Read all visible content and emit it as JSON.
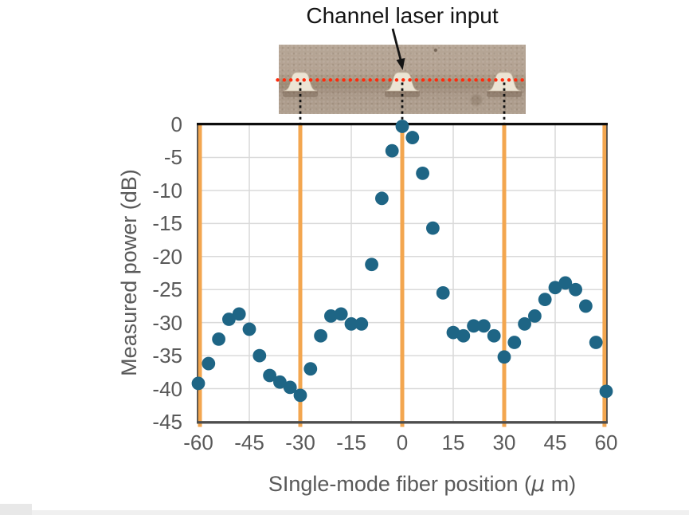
{
  "annotation": {
    "title": "Channel laser input"
  },
  "photo": {
    "bump_positions_um": [
      -30,
      0,
      30
    ]
  },
  "xlabel_parts": {
    "prefix": "SIngle-mode fiber position (",
    "mu": "μ",
    "suffix": " m)"
  },
  "chart_data": {
    "type": "scatter",
    "title": "",
    "xlabel": "SIngle-mode fiber position (μ m)",
    "ylabel": "Measured power (dB)",
    "xlim": [
      -60,
      60
    ],
    "ylim": [
      -45,
      0
    ],
    "grid": true,
    "xticks": [
      -60,
      -45,
      -30,
      -15,
      0,
      15,
      30,
      45,
      60
    ],
    "yticks": [
      0,
      -5,
      -10,
      -15,
      -20,
      -25,
      -30,
      -35,
      -40,
      -45
    ],
    "highlight_lines_x": [
      -60,
      -30,
      0,
      30,
      60
    ],
    "x": [
      -60,
      -57,
      -54,
      -51,
      -48,
      -45,
      -42,
      -39,
      -36,
      -33,
      -30,
      -27,
      -24,
      -21,
      -18,
      -15,
      -12,
      -9,
      -6,
      -3,
      0,
      3,
      6,
      9,
      12,
      15,
      18,
      21,
      24,
      27,
      30,
      33,
      36,
      39,
      42,
      45,
      48,
      51,
      54,
      57,
      60
    ],
    "y": [
      -39.2,
      -36.2,
      -32.5,
      -29.5,
      -28.7,
      -31,
      -35,
      -38,
      -39,
      -39.8,
      -41,
      -37,
      -32,
      -29,
      -28.7,
      -30.2,
      -30.2,
      -21.2,
      -11.2,
      -4,
      -0.3,
      -2,
      -7.4,
      -15.7,
      -25.5,
      -31.5,
      -32,
      -30.5,
      -30.5,
      -32,
      -35.2,
      -33,
      -30.2,
      -29,
      -26.5,
      -24.7,
      -24,
      -25,
      -27.5,
      -33,
      -40.4
    ],
    "colors": {
      "point": "#1E6585",
      "channel_line": "#F3A64F",
      "grid": "#d9d9d9",
      "tick_text": "#595959",
      "red_dotted_line": "#FF2B0D",
      "dash_line": "#111111",
      "top_axis": "#0d0d0d",
      "bottom_axis": "#4d4d4d"
    }
  }
}
